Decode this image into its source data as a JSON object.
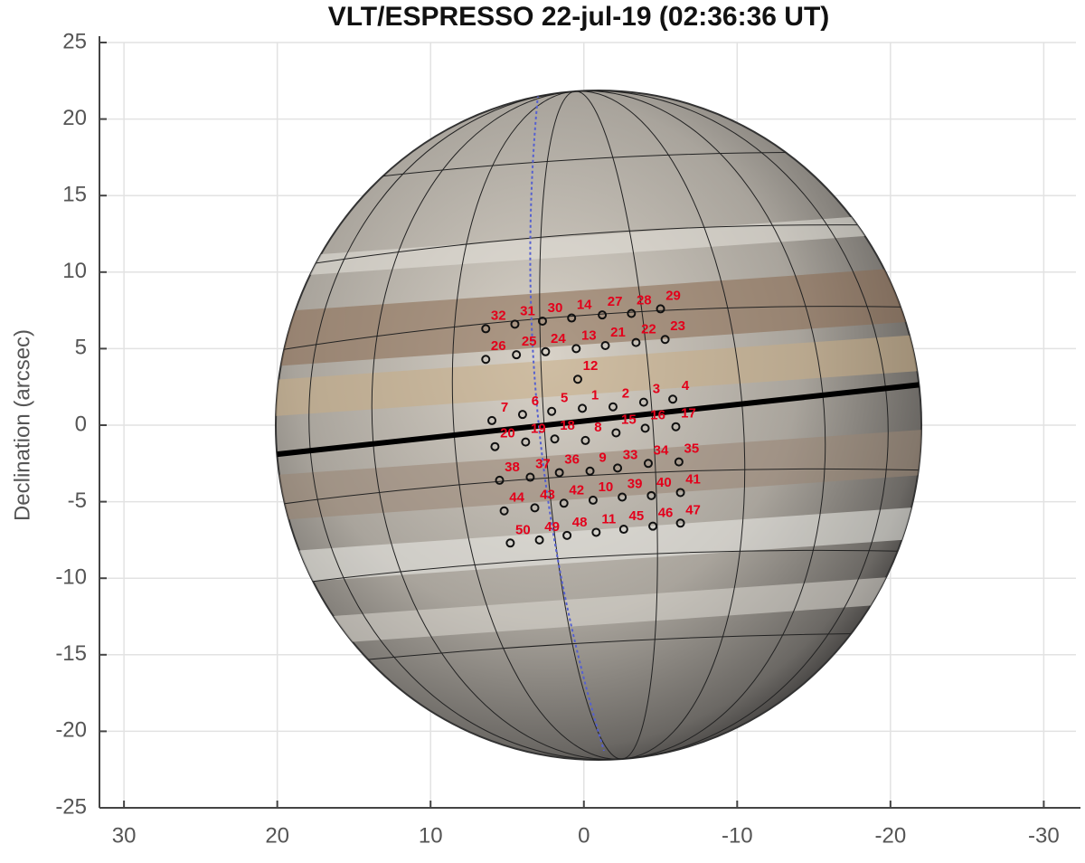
{
  "chart_data": {
    "type": "scatter",
    "title": "VLT/ESPRESSO 22-jul-19 (02:36:36 UT)",
    "ylabel": "Declination (arcsec)",
    "labels": [
      "1",
      "2",
      "3",
      "4",
      "5",
      "6",
      "7",
      "8",
      "9",
      "10",
      "11",
      "12",
      "13",
      "14",
      "15",
      "16",
      "17",
      "18",
      "19",
      "20",
      "21",
      "22",
      "23",
      "24",
      "25",
      "26",
      "27",
      "28",
      "29",
      "30",
      "31",
      "32",
      "33",
      "34",
      "35",
      "36",
      "37",
      "38",
      "39",
      "40",
      "41",
      "42",
      "43",
      "44",
      "45",
      "46",
      "47",
      "48",
      "49",
      "50"
    ],
    "x": [
      0.1,
      -1.9,
      -3.9,
      -5.8,
      2.1,
      4.0,
      6.0,
      -0.1,
      -0.4,
      -0.6,
      -0.8,
      0.4,
      0.5,
      0.8,
      -2.1,
      -4.0,
      -6.0,
      1.9,
      3.8,
      5.8,
      -1.4,
      -3.4,
      -5.3,
      2.5,
      4.4,
      6.4,
      -1.2,
      -3.1,
      -5.0,
      2.7,
      4.5,
      6.4,
      -2.2,
      -4.2,
      -6.2,
      1.6,
      3.5,
      5.5,
      -2.5,
      -4.4,
      -6.3,
      1.3,
      3.2,
      5.2,
      -2.6,
      -4.5,
      -6.3,
      1.1,
      2.9,
      4.8
    ],
    "y": [
      1.1,
      1.2,
      1.5,
      1.7,
      0.9,
      0.7,
      0.3,
      -1.0,
      -3.0,
      -4.9,
      -7.0,
      3.0,
      5.0,
      7.0,
      -0.5,
      -0.2,
      -0.1,
      -0.9,
      -1.1,
      -1.4,
      5.2,
      5.4,
      5.6,
      4.8,
      4.6,
      4.3,
      7.2,
      7.3,
      7.6,
      6.8,
      6.6,
      6.3,
      -2.8,
      -2.5,
      -2.4,
      -3.1,
      -3.4,
      -3.6,
      -4.7,
      -4.6,
      -4.4,
      -5.1,
      -5.4,
      -5.6,
      -6.8,
      -6.6,
      -6.4,
      -7.2,
      -7.5,
      -7.7
    ],
    "color": "#111111",
    "label_color": "#e3001b",
    "xlim": [
      31.6,
      -32.1
    ],
    "ylim": [
      -25,
      25
    ],
    "xticks": [
      30,
      20,
      10,
      0,
      -10,
      -20,
      -30
    ],
    "yticks": [
      25,
      20,
      15,
      10,
      5,
      0,
      -5,
      -10,
      -15,
      -20,
      -25
    ],
    "grid": true
  }
}
